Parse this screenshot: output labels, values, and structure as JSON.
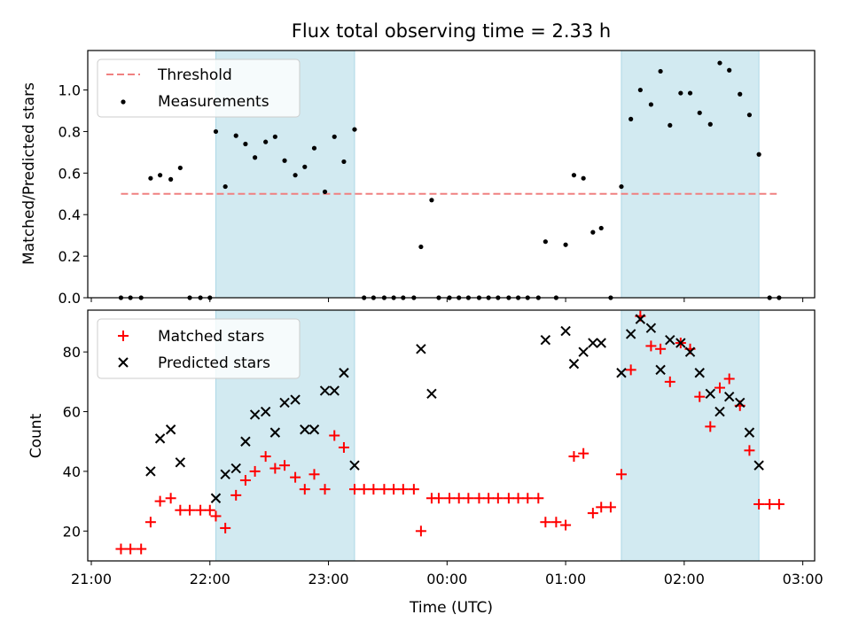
{
  "chart_data": {
    "title": "Flux total observing time = 2.33 h",
    "xlabel": "Time (UTC)",
    "x_ticks": [
      "21:00",
      "22:00",
      "23:00",
      "00:00",
      "01:00",
      "02:00",
      "03:00"
    ],
    "colors": {
      "shade": "#add8e6",
      "threshold": "#f08080",
      "measurements": "#000000",
      "matched": "#ff0000",
      "predicted": "#000000"
    },
    "shaded_spans_hours": [
      [
        22.05,
        23.22
      ],
      [
        25.47,
        26.63
      ]
    ],
    "xlim_hours": [
      20.97,
      27.1
    ],
    "top": {
      "type": "scatter",
      "ylabel": "Matched/Predicted stars",
      "ylim": [
        0,
        1.19
      ],
      "y_ticks": [
        "0.0",
        "0.2",
        "0.4",
        "0.6",
        "0.8",
        "1.0"
      ],
      "legend": [
        "Threshold",
        "Measurements"
      ],
      "legend_position": "upper-left",
      "threshold": {
        "name": "Threshold",
        "value": 0.5,
        "x_start": 21.25,
        "x_end": 26.78
      },
      "measurements": [
        [
          21.25,
          0
        ],
        [
          21.33,
          0
        ],
        [
          21.42,
          0
        ],
        [
          21.5,
          0.575
        ],
        [
          21.58,
          0.59
        ],
        [
          21.67,
          0.57
        ],
        [
          21.75,
          0.625
        ],
        [
          21.83,
          0
        ],
        [
          21.92,
          0
        ],
        [
          22.0,
          0
        ],
        [
          22.05,
          0.8
        ],
        [
          22.13,
          0.535
        ],
        [
          22.22,
          0.78
        ],
        [
          22.3,
          0.74
        ],
        [
          22.38,
          0.675
        ],
        [
          22.47,
          0.75
        ],
        [
          22.55,
          0.775
        ],
        [
          22.63,
          0.66
        ],
        [
          22.72,
          0.59
        ],
        [
          22.8,
          0.63
        ],
        [
          22.88,
          0.72
        ],
        [
          22.97,
          0.51
        ],
        [
          23.05,
          0.775
        ],
        [
          23.13,
          0.655
        ],
        [
          23.22,
          0.81
        ],
        [
          23.3,
          0
        ],
        [
          23.38,
          0
        ],
        [
          23.47,
          0
        ],
        [
          23.55,
          0
        ],
        [
          23.63,
          0
        ],
        [
          23.72,
          0
        ],
        [
          23.78,
          0.245
        ],
        [
          23.87,
          0.47
        ],
        [
          23.93,
          0
        ],
        [
          24.02,
          0
        ],
        [
          24.1,
          0
        ],
        [
          24.18,
          0
        ],
        [
          24.27,
          0
        ],
        [
          24.35,
          0
        ],
        [
          24.43,
          0
        ],
        [
          24.52,
          0
        ],
        [
          24.6,
          0
        ],
        [
          24.68,
          0
        ],
        [
          24.77,
          0
        ],
        [
          24.83,
          0.27
        ],
        [
          24.92,
          0
        ],
        [
          25.0,
          0.255
        ],
        [
          25.07,
          0.59
        ],
        [
          25.15,
          0.575
        ],
        [
          25.23,
          0.315
        ],
        [
          25.3,
          0.335
        ],
        [
          25.38,
          0
        ],
        [
          25.47,
          0.535
        ],
        [
          25.55,
          0.86
        ],
        [
          25.63,
          1.0
        ],
        [
          25.72,
          0.93
        ],
        [
          25.8,
          1.09
        ],
        [
          25.88,
          0.83
        ],
        [
          25.97,
          0.985
        ],
        [
          26.05,
          0.985
        ],
        [
          26.13,
          0.89
        ],
        [
          26.22,
          0.835
        ],
        [
          26.3,
          1.13
        ],
        [
          26.38,
          1.095
        ],
        [
          26.47,
          0.98
        ],
        [
          26.55,
          0.88
        ],
        [
          26.63,
          0.69
        ],
        [
          26.72,
          0
        ],
        [
          26.8,
          0
        ]
      ]
    },
    "bottom": {
      "type": "scatter",
      "ylabel": "Count",
      "ylim": [
        10,
        94
      ],
      "y_ticks": [
        "20",
        "40",
        "60",
        "80"
      ],
      "legend_position": "upper-left",
      "series": [
        {
          "name": "Matched stars",
          "marker": "plus",
          "points": [
            [
              21.25,
              14
            ],
            [
              21.33,
              14
            ],
            [
              21.42,
              14
            ],
            [
              21.5,
              23
            ],
            [
              21.58,
              30
            ],
            [
              21.67,
              31
            ],
            [
              21.75,
              27
            ],
            [
              21.83,
              27
            ],
            [
              21.92,
              27
            ],
            [
              22.0,
              27
            ],
            [
              22.05,
              25
            ],
            [
              22.13,
              21
            ],
            [
              22.22,
              32
            ],
            [
              22.3,
              37
            ],
            [
              22.38,
              40
            ],
            [
              22.47,
              45
            ],
            [
              22.55,
              41
            ],
            [
              22.63,
              42
            ],
            [
              22.72,
              38
            ],
            [
              22.8,
              34
            ],
            [
              22.88,
              39
            ],
            [
              22.97,
              34
            ],
            [
              23.05,
              52
            ],
            [
              23.13,
              48
            ],
            [
              23.22,
              34
            ],
            [
              23.3,
              34
            ],
            [
              23.38,
              34
            ],
            [
              23.47,
              34
            ],
            [
              23.55,
              34
            ],
            [
              23.63,
              34
            ],
            [
              23.72,
              34
            ],
            [
              23.78,
              20
            ],
            [
              23.87,
              31
            ],
            [
              23.93,
              31
            ],
            [
              24.02,
              31
            ],
            [
              24.1,
              31
            ],
            [
              24.18,
              31
            ],
            [
              24.27,
              31
            ],
            [
              24.35,
              31
            ],
            [
              24.43,
              31
            ],
            [
              24.52,
              31
            ],
            [
              24.6,
              31
            ],
            [
              24.68,
              31
            ],
            [
              24.77,
              31
            ],
            [
              24.83,
              23
            ],
            [
              24.92,
              23
            ],
            [
              25.0,
              22
            ],
            [
              25.07,
              45
            ],
            [
              25.15,
              46
            ],
            [
              25.23,
              26
            ],
            [
              25.3,
              28
            ],
            [
              25.38,
              28
            ],
            [
              25.47,
              39
            ],
            [
              25.55,
              74
            ],
            [
              25.63,
              92
            ],
            [
              25.72,
              82
            ],
            [
              25.8,
              81
            ],
            [
              25.88,
              70
            ],
            [
              25.97,
              83
            ],
            [
              26.05,
              81
            ],
            [
              26.13,
              65
            ],
            [
              26.22,
              55
            ],
            [
              26.3,
              68
            ],
            [
              26.38,
              71
            ],
            [
              26.47,
              62
            ],
            [
              26.55,
              47
            ],
            [
              26.63,
              29
            ],
            [
              26.72,
              29
            ],
            [
              26.8,
              29
            ]
          ]
        },
        {
          "name": "Predicted stars",
          "marker": "x",
          "points": [
            [
              21.5,
              40
            ],
            [
              21.58,
              51
            ],
            [
              21.67,
              54
            ],
            [
              21.75,
              43
            ],
            [
              22.05,
              31
            ],
            [
              22.13,
              39
            ],
            [
              22.22,
              41
            ],
            [
              22.3,
              50
            ],
            [
              22.38,
              59
            ],
            [
              22.47,
              60
            ],
            [
              22.55,
              53
            ],
            [
              22.63,
              63
            ],
            [
              22.72,
              64
            ],
            [
              22.8,
              54
            ],
            [
              22.88,
              54
            ],
            [
              22.97,
              67
            ],
            [
              23.05,
              67
            ],
            [
              23.13,
              73
            ],
            [
              23.22,
              42
            ],
            [
              23.78,
              81
            ],
            [
              23.87,
              66
            ],
            [
              24.83,
              84
            ],
            [
              25.0,
              87
            ],
            [
              25.07,
              76
            ],
            [
              25.15,
              80
            ],
            [
              25.23,
              83
            ],
            [
              25.3,
              83
            ],
            [
              25.47,
              73
            ],
            [
              25.55,
              86
            ],
            [
              25.63,
              91
            ],
            [
              25.72,
              88
            ],
            [
              25.8,
              74
            ],
            [
              25.88,
              84
            ],
            [
              25.97,
              83
            ],
            [
              26.05,
              80
            ],
            [
              26.13,
              73
            ],
            [
              26.22,
              66
            ],
            [
              26.3,
              60
            ],
            [
              26.38,
              65
            ],
            [
              26.47,
              63
            ],
            [
              26.55,
              53
            ],
            [
              26.63,
              42
            ]
          ]
        }
      ]
    }
  }
}
